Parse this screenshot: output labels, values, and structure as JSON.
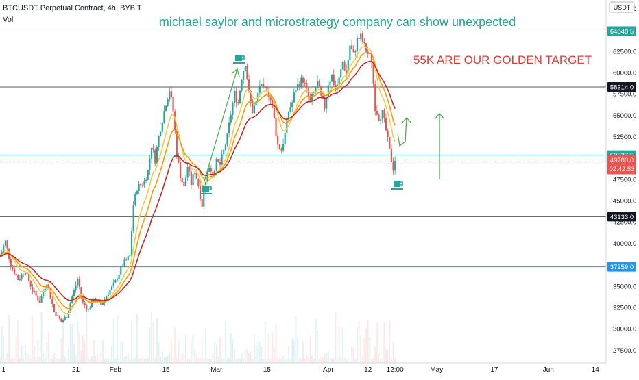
{
  "header": {
    "symbol_line": "BTCUSDT Perpetual Contract, 4h, BYBIT",
    "volume_label": "Vol",
    "currency": "USDT"
  },
  "annotations": {
    "headline": "michael saylor and microstrategy company can show unexpected",
    "target": "55K ARE OUR GOLDEN TARGET"
  },
  "colors": {
    "candle_up": "#26a69a",
    "candle_down": "#ef5350",
    "ema_fast": "#f7c948",
    "ema_mid": "#ff9800",
    "ema_slow": "#c62828",
    "teal": "#26a69a",
    "cyan_line": "#4fc3c7",
    "blue_line": "#2196f3",
    "gray_line": "#555555",
    "arrow": "#4caf50",
    "headline_text": "#26a69a",
    "target_text": "#e53935",
    "current_price_bg": "#ef5350",
    "blue_label_bg": "#2196f3",
    "dark_label_bg": "#131722"
  },
  "chart_data": {
    "type": "candlestick",
    "y_ticks": [
      "27500.0",
      "30000.0",
      "32500.0",
      "35000.0",
      "37500.0",
      "40000.0",
      "42500.0",
      "45000.0",
      "47500.0",
      "50000.0",
      "52500.0",
      "55000.0",
      "57500.0",
      "60000.0",
      "62500.0",
      "65000.0",
      "67500.0"
    ],
    "x_ticks": [
      {
        "label": "1",
        "day": 1
      },
      {
        "label": "21",
        "day": 21
      },
      {
        "label": "Feb",
        "day": 32
      },
      {
        "label": "15",
        "day": 46
      },
      {
        "label": "Mar",
        "day": 60
      },
      {
        "label": "15",
        "day": 74
      },
      {
        "label": "Apr",
        "day": 91
      },
      {
        "label": "12",
        "day": 102
      },
      {
        "label": "12:00",
        "day": 109.5
      },
      {
        "label": "May",
        "day": 121
      },
      {
        "label": "17",
        "day": 137
      },
      {
        "label": "Jun",
        "day": 152
      },
      {
        "label": "14",
        "day": 165
      }
    ],
    "horizontal_levels": [
      {
        "price": 64848.5,
        "label": "64848.5",
        "style": "cyan"
      },
      {
        "price": 58314.0,
        "label": "58314.0",
        "style": "gray"
      },
      {
        "price": 50327.5,
        "label": "50327.5",
        "style": "cyan"
      },
      {
        "price": 43133.0,
        "label": "43133.0",
        "style": "gray"
      },
      {
        "price": 37259.0,
        "label": "37259.0",
        "style": "blue"
      }
    ],
    "current_price": {
      "price": 49780.0,
      "label": "49780.0",
      "countdown": "02:42:53"
    },
    "price_keypoints": [
      [
        0,
        38500
      ],
      [
        1.5,
        40200
      ],
      [
        3,
        37500
      ],
      [
        5,
        35800
      ],
      [
        7,
        36800
      ],
      [
        9,
        34500
      ],
      [
        11,
        33200
      ],
      [
        13,
        35500
      ],
      [
        15,
        32000
      ],
      [
        17,
        30800
      ],
      [
        18.5,
        31500
      ],
      [
        20,
        33800
      ],
      [
        21.5,
        35800
      ],
      [
        23,
        33000
      ],
      [
        24.5,
        32200
      ],
      [
        26,
        33500
      ],
      [
        28,
        32800
      ],
      [
        30,
        34200
      ],
      [
        32,
        35500
      ],
      [
        34,
        37500
      ],
      [
        36,
        38500
      ],
      [
        37,
        44500
      ],
      [
        38,
        46500
      ],
      [
        40,
        47200
      ],
      [
        41,
        48500
      ],
      [
        42,
        51500
      ],
      [
        43,
        49800
      ],
      [
        44,
        52500
      ],
      [
        45,
        54500
      ],
      [
        46,
        56500
      ],
      [
        47,
        58000
      ],
      [
        48,
        55500
      ],
      [
        49,
        50500
      ],
      [
        50,
        48000
      ],
      [
        51,
        46500
      ],
      [
        52,
        49000
      ],
      [
        53,
        47000
      ],
      [
        54,
        48600
      ],
      [
        55,
        46800
      ],
      [
        56,
        44500
      ],
      [
        57,
        47500
      ],
      [
        58,
        49000
      ],
      [
        59,
        48300
      ],
      [
        60,
        49500
      ],
      [
        61,
        49200
      ],
      [
        62,
        50800
      ],
      [
        63,
        52500
      ],
      [
        64,
        55200
      ],
      [
        65,
        57500
      ],
      [
        66,
        56500
      ],
      [
        67,
        59500
      ],
      [
        68,
        61200
      ],
      [
        69,
        57500
      ],
      [
        70,
        55500
      ],
      [
        71,
        56500
      ],
      [
        72,
        58600
      ],
      [
        73,
        57800
      ],
      [
        74,
        58200
      ],
      [
        75,
        56800
      ],
      [
        76,
        54500
      ],
      [
        77,
        51500
      ],
      [
        78,
        51000
      ],
      [
        79,
        52800
      ],
      [
        80,
        55500
      ],
      [
        81,
        56500
      ],
      [
        82,
        58200
      ],
      [
        83,
        58800
      ],
      [
        84,
        59200
      ],
      [
        85,
        57800
      ],
      [
        86,
        56500
      ],
      [
        87,
        57500
      ],
      [
        88,
        58800
      ],
      [
        89,
        57000
      ],
      [
        90,
        56000
      ],
      [
        91,
        58800
      ],
      [
        92,
        59600
      ],
      [
        93,
        58000
      ],
      [
        94,
        59200
      ],
      [
        95,
        61200
      ],
      [
        96,
        60000
      ],
      [
        97,
        63200
      ],
      [
        98,
        62000
      ],
      [
        99,
        63800
      ],
      [
        100,
        64200
      ],
      [
        101,
        63000
      ],
      [
        102,
        62200
      ],
      [
        103,
        61500
      ],
      [
        104,
        56000
      ],
      [
        105,
        54800
      ],
      [
        106,
        55200
      ],
      [
        107,
        53200
      ],
      [
        108,
        50800
      ],
      [
        109,
        48800
      ],
      [
        109.5,
        49780
      ]
    ],
    "ema_offsets": [
      0,
      600,
      1500
    ],
    "x_range": [
      0,
      168
    ],
    "y_range": [
      26000,
      68500
    ]
  }
}
